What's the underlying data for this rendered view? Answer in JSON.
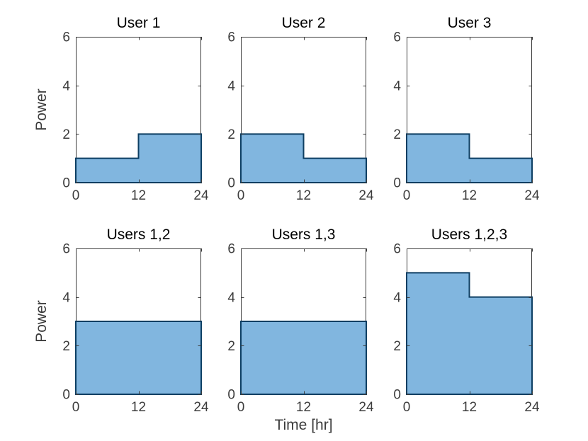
{
  "chart_data": {
    "type": "area",
    "title": "",
    "xlabel": "Time [hr]",
    "ylabel": "Power",
    "xlim": [
      0,
      24
    ],
    "ylim": [
      0,
      6
    ],
    "xticks": [
      0,
      12,
      24
    ],
    "yticks": [
      0,
      2,
      4,
      6
    ],
    "grid": false,
    "legend": null,
    "colors": {
      "fill": "#81B6DF",
      "edge": "#0D3E62",
      "axis": "#3c3c3c",
      "tick_text": "#3c3c3c",
      "title_text": "#000000",
      "background": "#FFFFFF"
    },
    "subplots": [
      {
        "title": "User 1",
        "row": 0,
        "col": 0,
        "show_ylabel": true,
        "show_xlabel": false,
        "x": [
          0,
          12,
          24
        ],
        "values": [
          1,
          2
        ]
      },
      {
        "title": "User 2",
        "row": 0,
        "col": 1,
        "show_ylabel": false,
        "show_xlabel": false,
        "x": [
          0,
          12,
          24
        ],
        "values": [
          2,
          1
        ]
      },
      {
        "title": "User 3",
        "row": 0,
        "col": 2,
        "show_ylabel": false,
        "show_xlabel": false,
        "x": [
          0,
          12,
          24
        ],
        "values": [
          2,
          1
        ]
      },
      {
        "title": "Users 1,2",
        "row": 1,
        "col": 0,
        "show_ylabel": true,
        "show_xlabel": false,
        "x": [
          0,
          24
        ],
        "values": [
          3
        ]
      },
      {
        "title": "Users 1,3",
        "row": 1,
        "col": 1,
        "show_ylabel": false,
        "show_xlabel": true,
        "x": [
          0,
          24
        ],
        "values": [
          3
        ]
      },
      {
        "title": "Users 1,2,3",
        "row": 1,
        "col": 2,
        "show_ylabel": false,
        "show_xlabel": false,
        "x": [
          0,
          12,
          24
        ],
        "values": [
          5,
          4
        ]
      }
    ]
  }
}
